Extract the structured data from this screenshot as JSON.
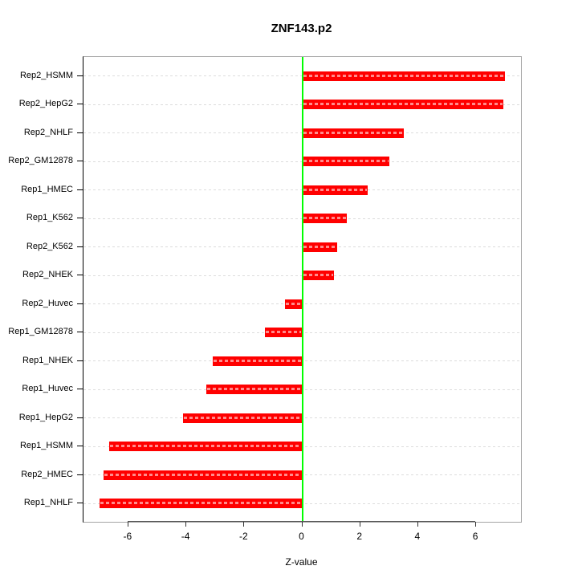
{
  "title": "ZNF143.p2",
  "chart_data": {
    "type": "bar",
    "orientation": "horizontal",
    "title": "ZNF143.p2",
    "xlabel": "Z-value",
    "ylabel": "",
    "categories": [
      "Rep2_HSMM",
      "Rep2_HepG2",
      "Rep2_NHLF",
      "Rep2_GM12878",
      "Rep1_HMEC",
      "Rep1_K562",
      "Rep2_K562",
      "Rep2_NHEK",
      "Rep2_Huvec",
      "Rep1_GM12878",
      "Rep1_NHEK",
      "Rep1_Huvec",
      "Rep1_HepG2",
      "Rep1_HSMM",
      "Rep2_HMEC",
      "Rep1_NHLF"
    ],
    "values": [
      7.0,
      6.95,
      3.5,
      3.0,
      2.25,
      1.55,
      1.2,
      1.1,
      -0.6,
      -1.3,
      -3.1,
      -3.3,
      -4.1,
      -6.65,
      -6.85,
      -7.0
    ],
    "xticks": [
      -6,
      -4,
      -2,
      0,
      2,
      4,
      6
    ],
    "xlim": [
      -7.55,
      7.55
    ],
    "grid": true,
    "legend": null,
    "bar_color": "#FF0000",
    "zero_line_color": "#00FF00",
    "grid_color": "#DCDCDC",
    "zero_line_x": 0
  }
}
